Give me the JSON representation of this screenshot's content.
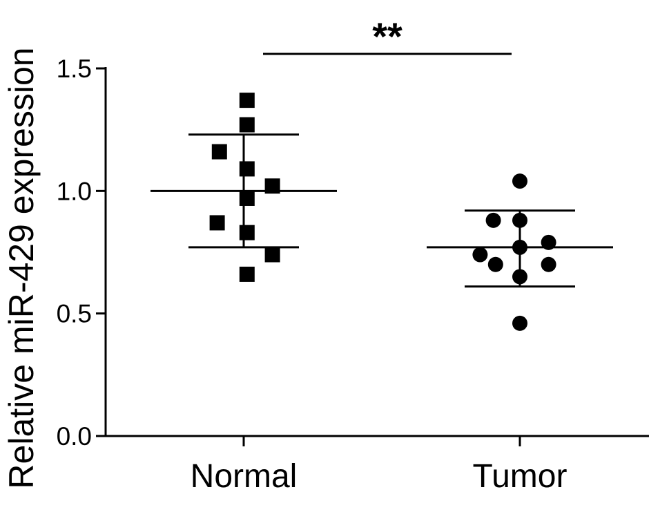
{
  "chart_data": {
    "type": "scatter",
    "title": "",
    "xlabel": "",
    "ylabel": "Relative miR-429 expression",
    "ylim": [
      0,
      1.5
    ],
    "yticks": [
      0.0,
      0.5,
      1.0,
      1.5
    ],
    "ytick_labels": [
      "0.0",
      "0.5",
      "1.0",
      "1.5"
    ],
    "categories": [
      "Normal",
      "Tumor"
    ],
    "grid": false,
    "series": [
      {
        "category": "Normal",
        "marker": "square",
        "points": [
          {
            "offset": 0.03,
            "y": 1.37
          },
          {
            "offset": 0.03,
            "y": 1.27
          },
          {
            "offset": -0.22,
            "y": 1.16
          },
          {
            "offset": 0.03,
            "y": 1.09
          },
          {
            "offset": 0.26,
            "y": 1.02
          },
          {
            "offset": 0.03,
            "y": 0.97
          },
          {
            "offset": -0.24,
            "y": 0.87
          },
          {
            "offset": 0.03,
            "y": 0.83
          },
          {
            "offset": 0.26,
            "y": 0.74
          },
          {
            "offset": 0.03,
            "y": 0.66
          }
        ],
        "mean": 1.0,
        "sd_upper": 1.23,
        "sd_lower": 0.77
      },
      {
        "category": "Tumor",
        "marker": "circle",
        "points": [
          {
            "offset": 0.0,
            "y": 1.04
          },
          {
            "offset": -0.24,
            "y": 0.88
          },
          {
            "offset": 0.0,
            "y": 0.88
          },
          {
            "offset": 0.0,
            "y": 0.77
          },
          {
            "offset": 0.26,
            "y": 0.79
          },
          {
            "offset": -0.36,
            "y": 0.74
          },
          {
            "offset": -0.22,
            "y": 0.7
          },
          {
            "offset": 0.26,
            "y": 0.7
          },
          {
            "offset": 0.0,
            "y": 0.65
          },
          {
            "offset": 0.0,
            "y": 0.46
          }
        ],
        "mean": 0.77,
        "sd_upper": 0.92,
        "sd_lower": 0.61
      }
    ],
    "annotations": [
      {
        "text": "**",
        "from": "Normal",
        "to": "Tumor"
      }
    ]
  }
}
